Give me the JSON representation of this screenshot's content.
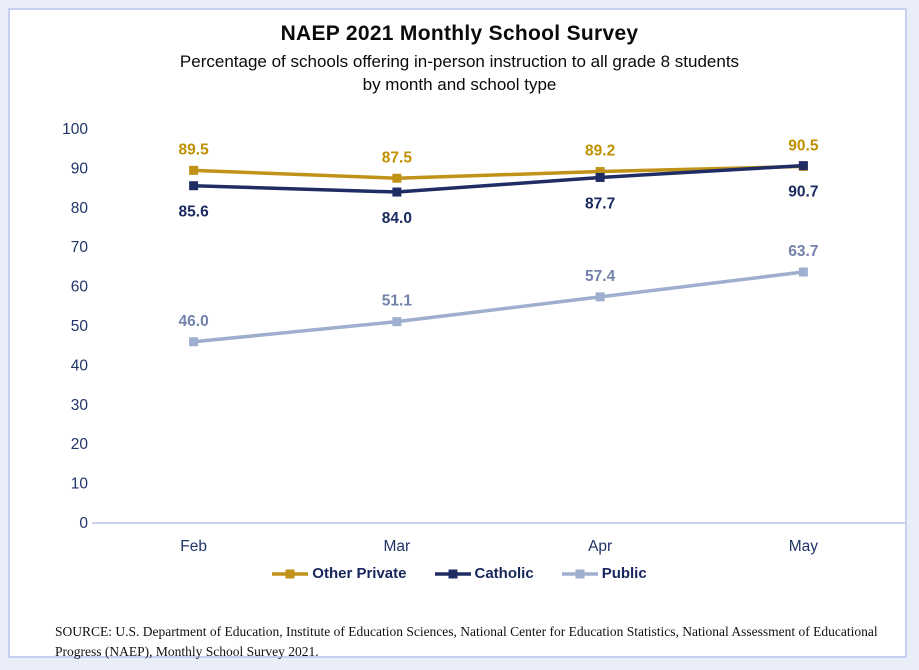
{
  "chart_data": {
    "type": "line",
    "title": "NAEP 2021 Monthly School Survey",
    "subtitle_lines": [
      "Percentage of schools offering in-person instruction to all grade 8 students",
      "by month and school type"
    ],
    "categories": [
      "Feb",
      "Mar",
      "Apr",
      "May"
    ],
    "series": [
      {
        "name": "Other Private",
        "color": "#C09218",
        "label_color": "#BF9000",
        "values": [
          89.5,
          87.5,
          89.2,
          90.5
        ],
        "labels": [
          "89.5",
          "87.5",
          "89.2",
          "90.5"
        ],
        "label_position": "above"
      },
      {
        "name": "Catholic",
        "color": "#1F2D64",
        "label_color": "#182A5E",
        "values": [
          85.6,
          84.0,
          87.7,
          90.7
        ],
        "labels": [
          "85.6",
          "84.0",
          "87.7",
          "90.7"
        ],
        "label_position": "below"
      },
      {
        "name": "Public",
        "color": "#9FAECE",
        "label_color": "#7282AA",
        "values": [
          46.0,
          51.1,
          57.4,
          63.7
        ],
        "labels": [
          "46.0",
          "51.1",
          "57.4",
          "63.7"
        ],
        "label_position": "above"
      }
    ],
    "ylim": [
      0,
      100
    ],
    "yticks": [
      0,
      10,
      20,
      30,
      40,
      50,
      60,
      70,
      80,
      90,
      100
    ],
    "grid": false,
    "legend_position": "bottom",
    "colors": {
      "axis_text": "#203468",
      "axis_line": "#B9C5E4",
      "page_background": "#E9EEF9",
      "frame_border": "#C7D0F0"
    }
  },
  "source": "SOURCE: U.S. Department of Education, Institute of Education Sciences, National Center for Education Statistics, National Assessment of Educational Progress (NAEP), Monthly School Survey 2021."
}
